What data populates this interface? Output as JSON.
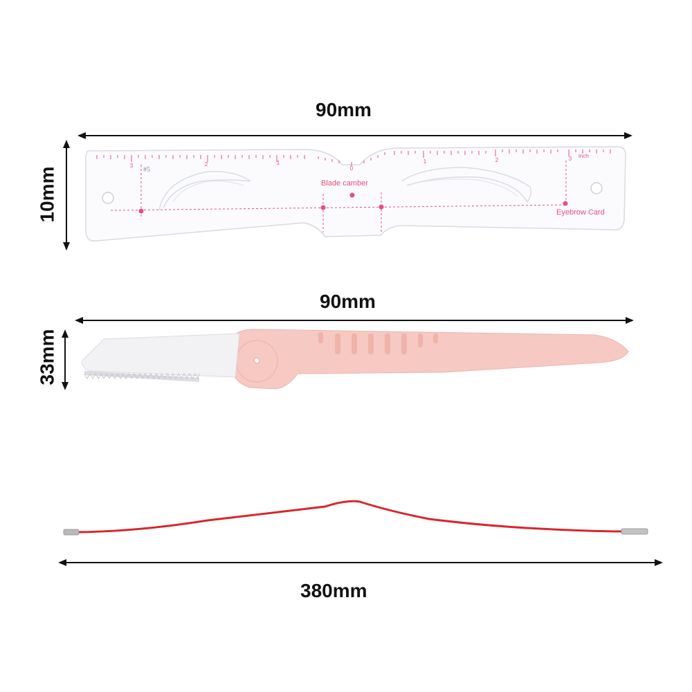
{
  "dimensions": {
    "card_width": "90mm",
    "card_height": "10mm",
    "razor_width": "90mm",
    "razor_height": "33mm",
    "wire_length": "380mm"
  },
  "card": {
    "title": "Blade camber",
    "brand": "Eyebrow Card",
    "size_mark": "#5",
    "unit": "inch",
    "ticks_left": [
      "3",
      "2",
      "1",
      "0"
    ],
    "ticks_right": [
      "1",
      "2",
      "3"
    ]
  },
  "colors": {
    "ruler_pink": "#e84d7a",
    "razor_pink": "#f6c9c2",
    "razor_blade": "#f2f2f2",
    "wire_red": "#d8262c",
    "wire_tip": "#b9b9b9",
    "arrow": "#111111"
  }
}
